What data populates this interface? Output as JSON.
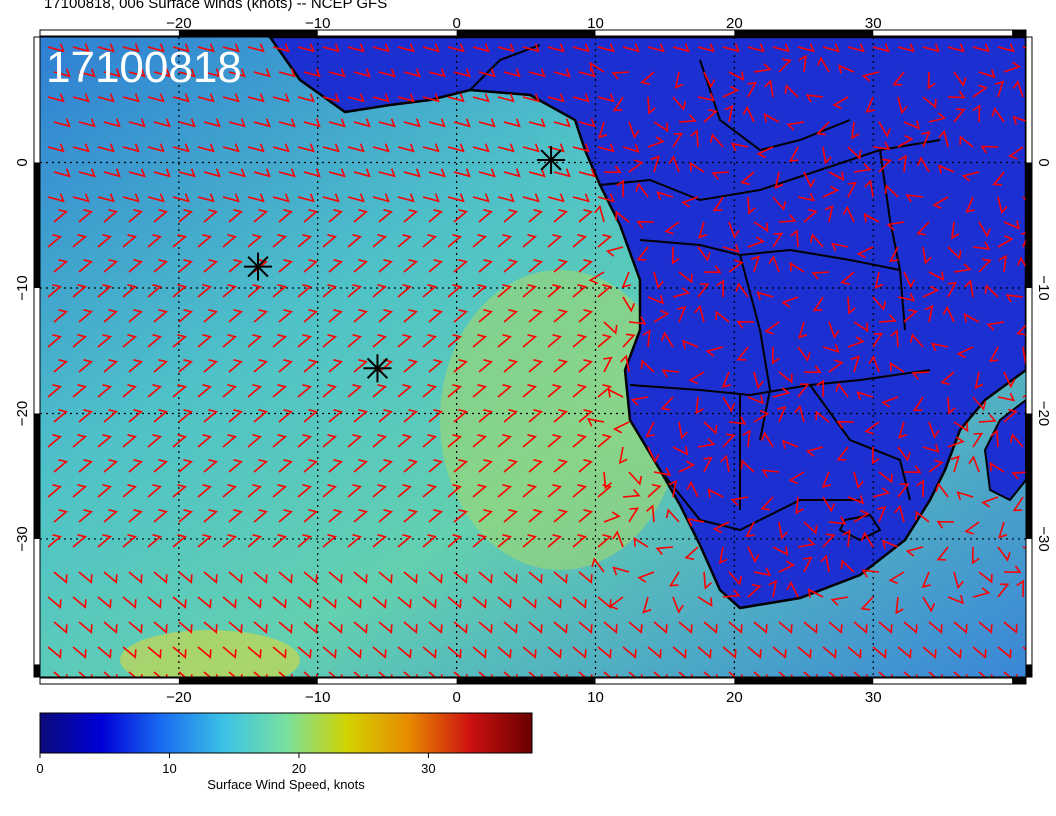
{
  "title": "17100818, 006 Surface winds (knots) -- NCEP GFS",
  "stamp": "17100818",
  "map": {
    "lon_range": [
      -30,
      41
    ],
    "lat_range": [
      -41,
      10
    ],
    "lon_ticks": [
      -20,
      -10,
      0,
      10,
      20,
      30
    ],
    "lat_ticks": [
      0,
      -10,
      -20,
      -30
    ],
    "lon_tick_labels": [
      "−20",
      "−10",
      "0",
      "10",
      "20",
      "30"
    ],
    "lat_tick_labels": [
      "0",
      "−10",
      "−20",
      "−30"
    ],
    "field": "Surface Wind Speed",
    "units": "knots",
    "ocean_color": "#3a8fd0",
    "land_color": "#1d2fd8",
    "barb_color": "#ff0000",
    "grid": true
  },
  "markers": [
    {
      "name": "storm-marker-1",
      "lon": 6.8,
      "lat": 0.2
    },
    {
      "name": "storm-marker-2",
      "lon": -14.3,
      "lat": -8.3
    },
    {
      "name": "storm-marker-3",
      "lon": -5.7,
      "lat": -16.4
    }
  ],
  "colorbar": {
    "title": "Surface Wind Speed, knots",
    "min": 0,
    "max": 38,
    "ticks": [
      0,
      10,
      20,
      30
    ],
    "tick_labels": [
      "0",
      "10",
      "20",
      "30"
    ],
    "colors": [
      "#0a0a7a",
      "#0000d8",
      "#1a6ef0",
      "#3cc3e6",
      "#78e0a0",
      "#d2d200",
      "#e88a00",
      "#cc1010",
      "#6a0000"
    ]
  }
}
